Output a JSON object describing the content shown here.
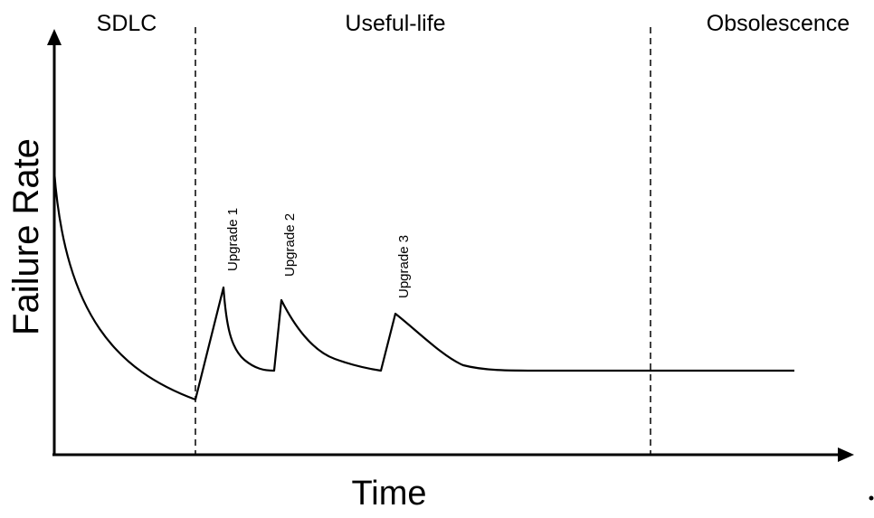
{
  "diagram": {
    "phases": [
      {
        "name": "SDLC"
      },
      {
        "name": "Useful-life"
      },
      {
        "name": "Obsolescence"
      }
    ],
    "y_axis_label": "Failure Rate",
    "x_axis_label": "Time",
    "events": [
      {
        "label": "Upgrade 1"
      },
      {
        "label": "Upgrade 2"
      },
      {
        "label": "Upgrade 3"
      }
    ],
    "colors": {
      "line": "#000000",
      "background": "#ffffff"
    }
  }
}
